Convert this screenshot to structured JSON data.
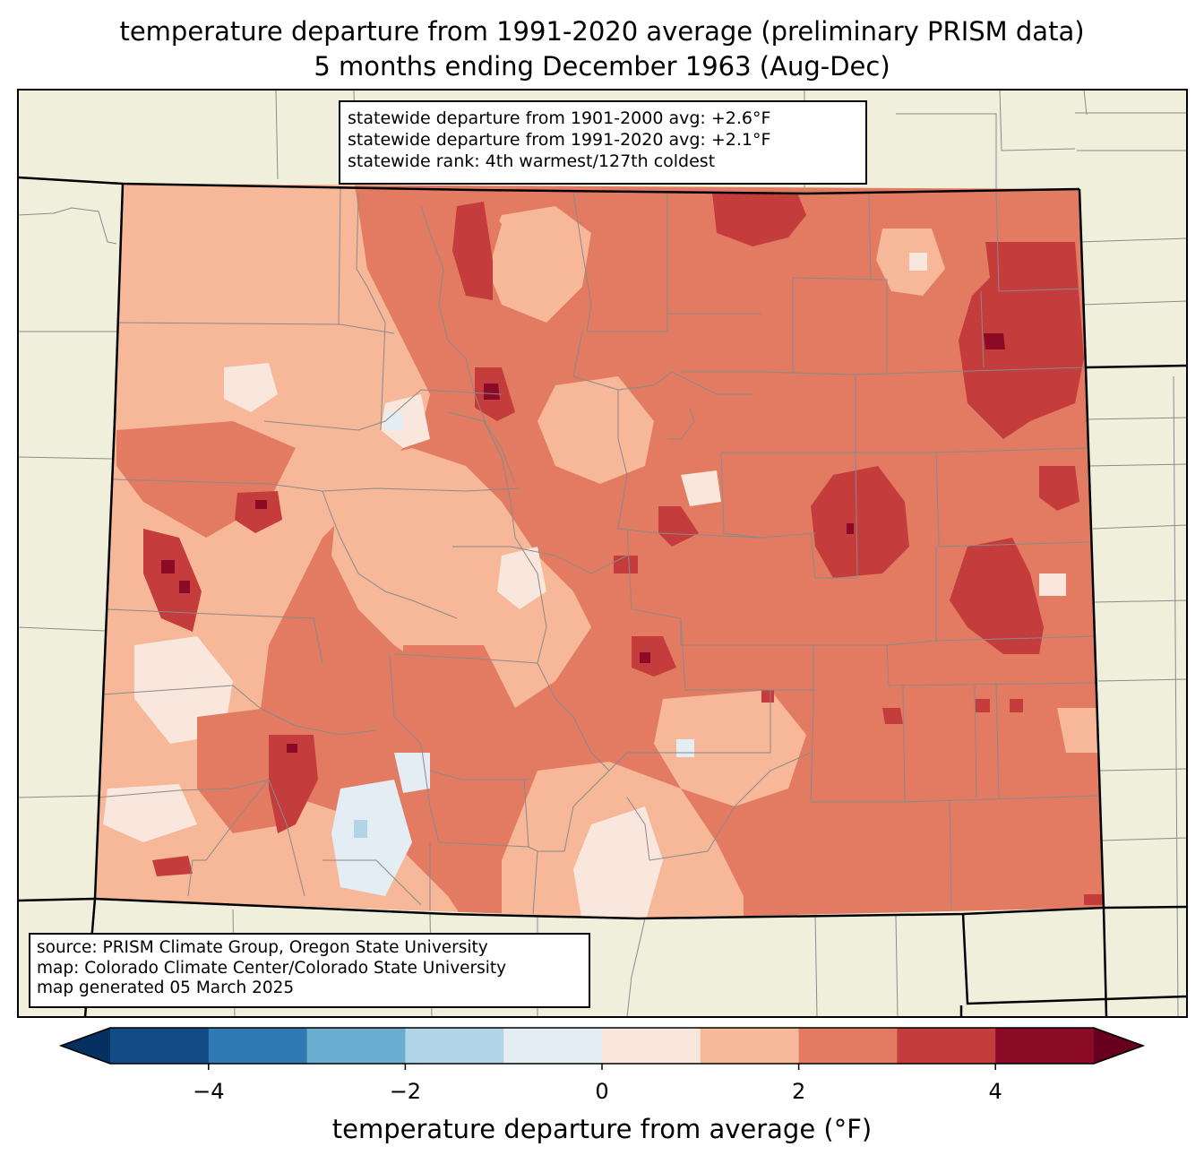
{
  "title": {
    "line1": "temperature departure from 1991-2020 average (preliminary PRISM data)",
    "line2": "5 months ending December 1963 (Aug-Dec)"
  },
  "stats": {
    "line1": "statewide departure from 1901-2000 avg: +2.6°F",
    "line2": "statewide departure from 1991-2020 avg: +2.1°F",
    "line3": "statewide rank: 4th warmest/127th coldest"
  },
  "credits": {
    "line1": "source: PRISM Climate Group, Oregon State University",
    "line2": "map: Colorado Climate Center/Colorado State University",
    "line3": "map generated 05 March 2025"
  },
  "colorbar": {
    "label": "temperature departure from average (°F)",
    "ticks": [
      "−4",
      "−2",
      "0",
      "2",
      "4"
    ],
    "tick_values": [
      -4,
      -2,
      0,
      2,
      4
    ],
    "bins": [
      -5,
      -4,
      -3,
      -2,
      -1,
      0,
      1,
      2,
      3,
      4,
      5
    ],
    "colors": [
      "#134b87",
      "#2f79b5",
      "#6bacd1",
      "#b1d5e7",
      "#e3edf3",
      "#f9e6dc",
      "#f7b799",
      "#e27b62",
      "#c43c3c",
      "#8b0a25"
    ],
    "under_color": "#053061",
    "over_color": "#67001f"
  },
  "map_colors": {
    "land": "#f0efdc",
    "dominant": "#e27b62"
  }
}
